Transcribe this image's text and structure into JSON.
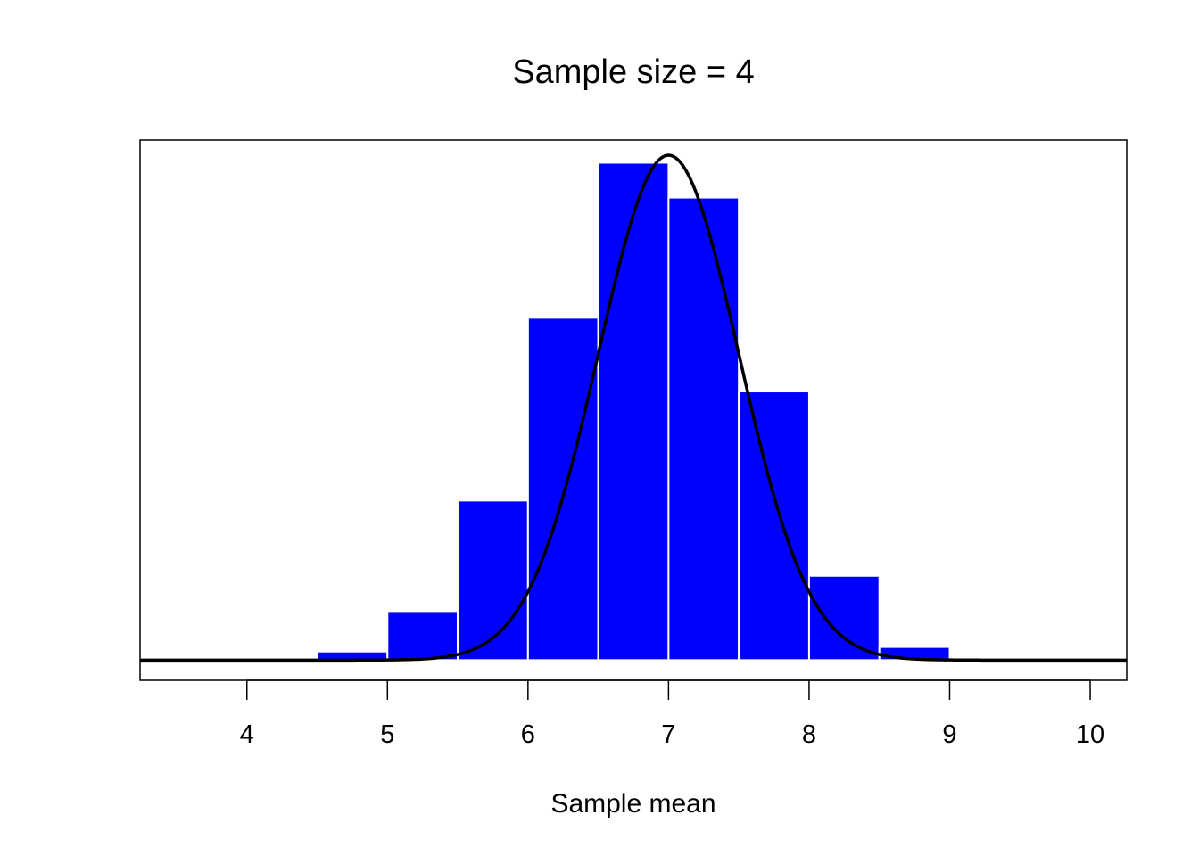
{
  "chart_data": {
    "type": "bar",
    "title": "Sample size = 4",
    "xlabel": "Sample mean",
    "ylabel": "",
    "xlim": [
      3.24,
      10.26
    ],
    "x_ticks": [
      4,
      5,
      6,
      7,
      8,
      9,
      10
    ],
    "y_axis_shown": false,
    "bins": [
      {
        "start": 4.5,
        "end": 5.0,
        "value": 0.017
      },
      {
        "start": 5.0,
        "end": 5.5,
        "value": 0.097
      },
      {
        "start": 5.5,
        "end": 6.0,
        "value": 0.316
      },
      {
        "start": 6.0,
        "end": 6.5,
        "value": 0.678
      },
      {
        "start": 6.5,
        "end": 7.0,
        "value": 0.985
      },
      {
        "start": 7.0,
        "end": 7.5,
        "value": 0.916
      },
      {
        "start": 7.5,
        "end": 8.0,
        "value": 0.532
      },
      {
        "start": 8.0,
        "end": 8.5,
        "value": 0.167
      },
      {
        "start": 8.5,
        "end": 9.0,
        "value": 0.026
      }
    ],
    "curve": {
      "type": "normal-density",
      "mean": 7.0,
      "sd": 0.5
    },
    "ylim": [
      -0.04,
      1.03
    ],
    "bar_color": "#0000FF",
    "bar_border_color": "#FFFFFF",
    "curve_color": "#000000",
    "grid": false
  }
}
